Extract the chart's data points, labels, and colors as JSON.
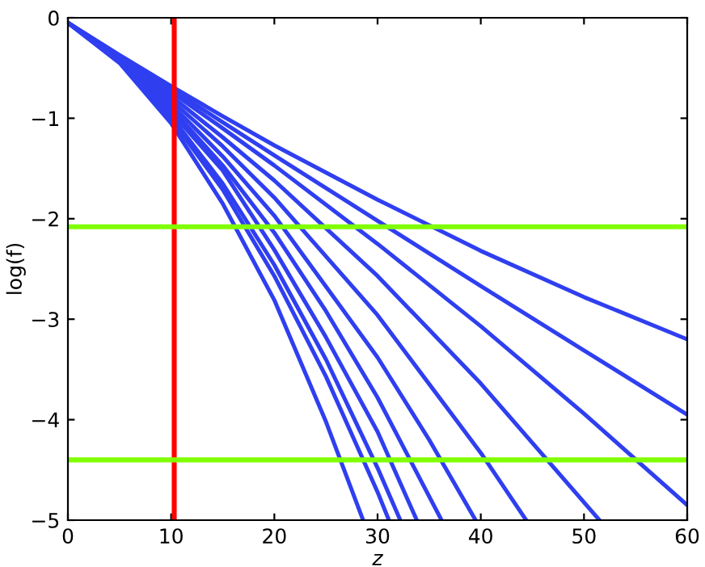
{
  "chart_data": {
    "type": "line",
    "xlabel": "z",
    "ylabel": "log(f)",
    "xlim": [
      0,
      60
    ],
    "ylim": [
      -5,
      0
    ],
    "xticks": [
      0,
      10,
      20,
      30,
      40,
      50,
      60
    ],
    "yticks": [
      -5,
      -4,
      -3,
      -2,
      -1,
      0
    ],
    "grid": false,
    "legend": false,
    "series": [
      {
        "color": "#2f3ff0",
        "x": [
          0,
          5,
          10,
          15,
          20,
          30,
          40,
          50,
          60
        ],
        "values": [
          -0.05,
          -0.37,
          -0.68,
          -0.98,
          -1.27,
          -1.81,
          -2.32,
          -2.78,
          -3.2
        ]
      },
      {
        "color": "#2f3ff0",
        "x": [
          0,
          5,
          10,
          15,
          20,
          30,
          40,
          50,
          60
        ],
        "values": [
          -0.05,
          -0.38,
          -0.71,
          -1.04,
          -1.37,
          -2.02,
          -2.67,
          -3.31,
          -3.95
        ]
      },
      {
        "color": "#2f3ff0",
        "x": [
          0,
          5,
          10,
          15,
          20,
          30,
          40,
          50,
          60
        ],
        "values": [
          -0.05,
          -0.39,
          -0.74,
          -1.1,
          -1.47,
          -2.25,
          -3.07,
          -3.94,
          -4.85
        ]
      },
      {
        "color": "#2f3ff0",
        "x": [
          0,
          5,
          10,
          15,
          20,
          30,
          40,
          51.5
        ],
        "values": [
          -0.05,
          -0.4,
          -0.78,
          -1.19,
          -1.62,
          -2.57,
          -3.64,
          -5
        ]
      },
      {
        "color": "#2f3ff0",
        "x": [
          0,
          5,
          10,
          15,
          20,
          30,
          40,
          44.4
        ],
        "values": [
          -0.05,
          -0.41,
          -0.82,
          -1.28,
          -1.79,
          -2.96,
          -4.33,
          -5
        ]
      },
      {
        "color": "#2f3ff0",
        "x": [
          0,
          5,
          10,
          15,
          20,
          30,
          35,
          39.5
        ],
        "values": [
          -0.05,
          -0.42,
          -0.86,
          -1.38,
          -1.97,
          -3.38,
          -4.2,
          -5
        ]
      },
      {
        "color": "#2f3ff0",
        "x": [
          0,
          5,
          10,
          15,
          20,
          25,
          30,
          36.2
        ],
        "values": [
          -0.05,
          -0.43,
          -0.9,
          -1.47,
          -2.14,
          -2.92,
          -3.78,
          -5
        ]
      },
      {
        "color": "#2f3ff0",
        "x": [
          0,
          5,
          10,
          15,
          20,
          25,
          30,
          33.8
        ],
        "values": [
          -0.05,
          -0.43,
          -0.94,
          -1.52,
          -2.31,
          -3.18,
          -4.12,
          -5
        ]
      },
      {
        "color": "#2f3ff0",
        "x": [
          0,
          5,
          10,
          15,
          20,
          25,
          30,
          32.2
        ],
        "values": [
          -0.05,
          -0.44,
          -0.98,
          -1.65,
          -2.46,
          -3.4,
          -4.48,
          -5
        ]
      },
      {
        "color": "#2f3ff0",
        "x": [
          0,
          5,
          10,
          15,
          20,
          25,
          30,
          31.1
        ],
        "values": [
          -0.05,
          -0.44,
          -1.01,
          -1.71,
          -2.57,
          -3.57,
          -4.72,
          -5
        ]
      },
      {
        "color": "#2f3ff0",
        "x": [
          0,
          5,
          10,
          15,
          20,
          25,
          28.6
        ],
        "values": [
          -0.05,
          -0.45,
          -1.05,
          -1.85,
          -2.81,
          -4.02,
          -5
        ]
      }
    ],
    "ref_lines": [
      {
        "axis": "x",
        "value": 10.3,
        "color": "#ff0000"
      },
      {
        "axis": "y",
        "value": -2.08,
        "color": "#80ff00"
      },
      {
        "axis": "y",
        "value": -4.4,
        "color": "#80ff00"
      }
    ]
  }
}
